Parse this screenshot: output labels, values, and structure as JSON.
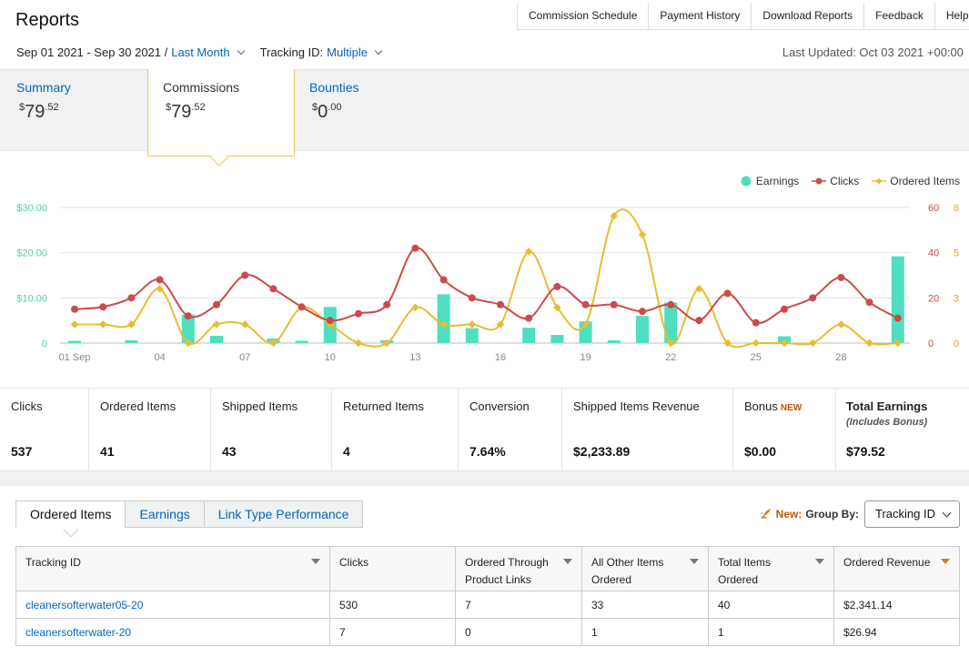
{
  "header": {
    "title": "Reports",
    "nav": [
      "Commission Schedule",
      "Payment History",
      "Download Reports",
      "Feedback",
      "Help"
    ]
  },
  "filters": {
    "date_range": "Sep 01 2021 - Sep 30 2021 /",
    "period_link": "Last Month",
    "tracking_label": "Tracking ID:",
    "tracking_value": "Multiple",
    "last_updated": "Last Updated: Oct 03 2021 +00:00"
  },
  "summary_tabs": [
    {
      "label": "Summary",
      "currency": "$",
      "whole": "79",
      "cents": ".52"
    },
    {
      "label": "Commissions",
      "currency": "$",
      "whole": "79",
      "cents": ".52"
    },
    {
      "label": "Bounties",
      "currency": "$",
      "whole": "0",
      "cents": ".00"
    }
  ],
  "legend": {
    "earnings": "Earnings",
    "clicks": "Clicks",
    "ordered": "Ordered Items"
  },
  "colors": {
    "earnings": "#4fdfc0",
    "clicks": "#cc4a4a",
    "ordered": "#e8bd32",
    "link": "#0066c0",
    "accent": "#c45500"
  },
  "chart_data": {
    "type": "bar+line",
    "x": [
      1,
      2,
      3,
      4,
      5,
      6,
      7,
      8,
      9,
      10,
      11,
      12,
      13,
      14,
      15,
      16,
      17,
      18,
      19,
      20,
      21,
      22,
      23,
      24,
      25,
      26,
      27,
      28,
      29,
      30
    ],
    "xtick_labels": [
      "01 Sep",
      "04",
      "07",
      "10",
      "13",
      "16",
      "19",
      "22",
      "25",
      "28"
    ],
    "xtick_days": [
      1,
      4,
      7,
      10,
      13,
      16,
      19,
      22,
      25,
      28
    ],
    "earnings_axis": {
      "ticks": [
        "0",
        "$10.00",
        "$20.00",
        "$30.00"
      ],
      "max": 30
    },
    "clicks_axis": {
      "ticks": [
        "0",
        "20",
        "40",
        "60"
      ],
      "max": 60
    },
    "ordered_axis": {
      "ticks": [
        "0",
        "3",
        "5",
        "8"
      ],
      "max": 8
    },
    "series": [
      {
        "name": "Earnings",
        "type": "bar",
        "values": [
          0.5,
          0,
          0.6,
          0,
          6.3,
          1.6,
          0,
          1,
          0.5,
          8,
          0,
          0.6,
          0,
          10.8,
          3.3,
          0,
          3.4,
          1.8,
          4.8,
          0.6,
          6,
          9,
          0,
          0,
          0,
          1.5,
          0,
          0,
          0,
          19.2
        ]
      },
      {
        "name": "Clicks",
        "type": "line",
        "values": [
          15,
          16,
          20,
          28,
          12,
          17,
          30,
          24,
          16,
          10,
          13,
          17,
          42,
          28,
          20,
          17,
          11,
          25,
          17,
          17,
          14,
          17,
          10,
          22,
          9,
          15,
          20,
          29,
          18,
          11
        ]
      },
      {
        "name": "Ordered Items",
        "type": "line",
        "values": [
          1.1,
          1.1,
          1.1,
          3.2,
          0,
          1.1,
          1.1,
          0,
          2.1,
          1.1,
          0,
          0,
          2.1,
          1.1,
          1.1,
          1.1,
          5.4,
          2.1,
          1.1,
          7.5,
          6.4,
          0,
          3.2,
          0,
          0,
          0,
          0,
          1.1,
          0,
          0
        ]
      }
    ]
  },
  "stats": [
    {
      "label": "Clicks",
      "value": "537"
    },
    {
      "label": "Ordered Items",
      "value": "41"
    },
    {
      "label": "Shipped Items",
      "value": "43"
    },
    {
      "label": "Returned Items",
      "value": "4"
    },
    {
      "label": "Conversion",
      "value": "7.64%"
    },
    {
      "label": "Shipped Items Revenue",
      "value": "$2,233.89"
    },
    {
      "label": "Bonus",
      "badge": "NEW",
      "value": "$0.00"
    },
    {
      "label": "Total Earnings",
      "sub": "(Includes Bonus)",
      "value": "$79.52"
    }
  ],
  "report_tabs": [
    "Ordered Items",
    "Earnings",
    "Link Type Performance"
  ],
  "group_by": {
    "new_label": "New:",
    "label": "Group By:",
    "selected": "Tracking ID"
  },
  "table": {
    "headers": [
      "Tracking ID",
      "Clicks",
      "Ordered Through Product Links",
      "All Other Items Ordered",
      "Total Items Ordered",
      "Ordered Revenue"
    ],
    "rows": [
      [
        "cleanersofterwater05-20",
        "530",
        "7",
        "33",
        "40",
        "$2,341.14"
      ],
      [
        "cleanersofterwater-20",
        "7",
        "0",
        "1",
        "1",
        "$26.94"
      ]
    ]
  }
}
